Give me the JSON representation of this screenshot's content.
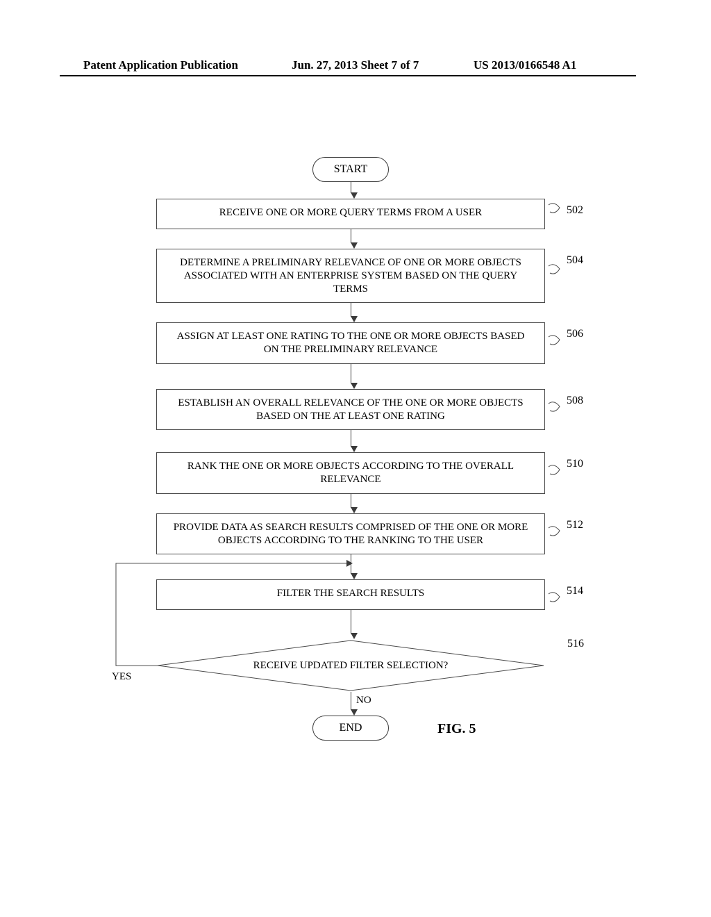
{
  "header": {
    "left": "Patent Application Publication",
    "mid": "Jun. 27, 2013  Sheet 7 of 7",
    "right": "US 2013/0166548 A1"
  },
  "colors": {
    "line": "#4a4a4a",
    "text": "#000000",
    "bg": "#ffffff"
  },
  "fig": {
    "label": "FIG. 5"
  },
  "flow": {
    "start": "START",
    "end": "END",
    "steps": [
      {
        "num": "502",
        "text": "RECEIVE ONE OR MORE QUERY TERMS FROM A USER"
      },
      {
        "num": "504",
        "text": "DETERMINE A PRELIMINARY RELEVANCE OF ONE OR MORE OBJECTS ASSOCIATED WITH AN ENTERPRISE SYSTEM BASED ON THE QUERY TERMS"
      },
      {
        "num": "506",
        "text": "ASSIGN AT LEAST ONE RATING TO THE ONE OR MORE OBJECTS BASED ON THE PRELIMINARY RELEVANCE"
      },
      {
        "num": "508",
        "text": "ESTABLISH AN OVERALL RELEVANCE OF THE ONE OR MORE OBJECTS BASED ON THE AT LEAST ONE RATING"
      },
      {
        "num": "510",
        "text": "RANK THE ONE OR MORE OBJECTS ACCORDING TO THE OVERALL RELEVANCE"
      },
      {
        "num": "512",
        "text": "PROVIDE DATA AS SEARCH RESULTS COMPRISED OF THE ONE OR MORE OBJECTS ACCORDING TO THE RANKING TO THE USER"
      },
      {
        "num": "514",
        "text": "FILTER THE SEARCH RESULTS"
      }
    ],
    "decision": {
      "num": "516",
      "text": "RECEIVE UPDATED FILTER SELECTION?",
      "yes": "YES",
      "no": "NO"
    }
  }
}
